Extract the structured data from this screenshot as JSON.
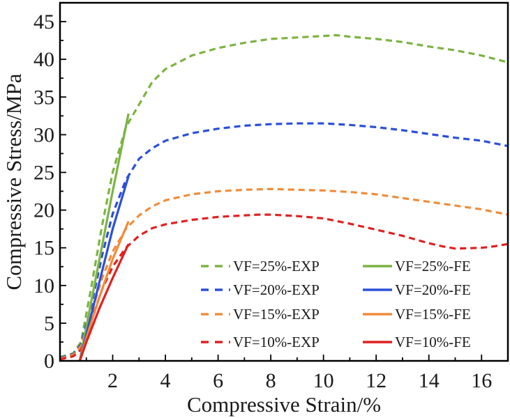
{
  "chart_data": {
    "type": "line",
    "title": "",
    "xlabel": "Compressive Strain/%",
    "ylabel": "Compressive Stress/MPa",
    "xlim": [
      0,
      17
    ],
    "ylim": [
      0,
      47.5
    ],
    "xticks": [
      2,
      4,
      6,
      8,
      10,
      12,
      14,
      16
    ],
    "yticks": [
      0,
      5,
      10,
      15,
      20,
      25,
      30,
      35,
      40,
      45
    ],
    "grid": false,
    "legend_position": "bottom-right",
    "series": [
      {
        "name": "VF=25%-EXP",
        "color": "#7cb342",
        "style": "dashed",
        "points": [
          [
            0,
            0.5
          ],
          [
            0.5,
            1.0
          ],
          [
            0.8,
            2.5
          ],
          [
            1.2,
            10
          ],
          [
            1.6,
            18
          ],
          [
            2.0,
            25
          ],
          [
            2.5,
            31
          ],
          [
            3.0,
            34
          ],
          [
            3.5,
            37
          ],
          [
            4.0,
            38.7
          ],
          [
            5.0,
            40.5
          ],
          [
            6.0,
            41.5
          ],
          [
            7.0,
            42.2
          ],
          [
            8.0,
            42.7
          ],
          [
            9.0,
            42.9
          ],
          [
            10.0,
            43.1
          ],
          [
            10.5,
            43.2
          ],
          [
            11.0,
            43.0
          ],
          [
            12.0,
            42.7
          ],
          [
            13.0,
            42.3
          ],
          [
            14.0,
            41.7
          ],
          [
            15.0,
            41.2
          ],
          [
            16.0,
            40.5
          ],
          [
            17.0,
            39.6
          ]
        ]
      },
      {
        "name": "VF=20%-EXP",
        "color": "#2b4fd9",
        "style": "dashed",
        "points": [
          [
            0,
            0.4
          ],
          [
            0.5,
            0.9
          ],
          [
            0.8,
            2.2
          ],
          [
            1.2,
            7.5
          ],
          [
            1.6,
            14
          ],
          [
            2.0,
            19.5
          ],
          [
            2.5,
            24.0
          ],
          [
            3.0,
            26.8
          ],
          [
            3.5,
            28.2
          ],
          [
            4.0,
            29.2
          ],
          [
            5.0,
            30.2
          ],
          [
            6.0,
            30.8
          ],
          [
            7.0,
            31.2
          ],
          [
            8.0,
            31.4
          ],
          [
            9.0,
            31.5
          ],
          [
            10.0,
            31.5
          ],
          [
            11.0,
            31.3
          ],
          [
            12.0,
            31.0
          ],
          [
            13.0,
            30.6
          ],
          [
            14.0,
            30.1
          ],
          [
            15.0,
            29.6
          ],
          [
            16.0,
            29.2
          ],
          [
            17.0,
            28.5
          ]
        ]
      },
      {
        "name": "VF=15%-EXP",
        "color": "#f08c3a",
        "style": "dashed",
        "points": [
          [
            0,
            0.3
          ],
          [
            0.5,
            0.8
          ],
          [
            0.8,
            2.0
          ],
          [
            1.2,
            6.5
          ],
          [
            1.6,
            11
          ],
          [
            2.0,
            14.5
          ],
          [
            2.5,
            17.5
          ],
          [
            3.0,
            19.3
          ],
          [
            3.5,
            20.5
          ],
          [
            4.0,
            21.3
          ],
          [
            5.0,
            22.1
          ],
          [
            6.0,
            22.5
          ],
          [
            7.0,
            22.7
          ],
          [
            8.0,
            22.8
          ],
          [
            9.0,
            22.7
          ],
          [
            10.0,
            22.6
          ],
          [
            11.0,
            22.4
          ],
          [
            12.0,
            22.1
          ],
          [
            13.0,
            21.6
          ],
          [
            14.0,
            21.1
          ],
          [
            15.0,
            20.6
          ],
          [
            16.0,
            20.1
          ],
          [
            17.0,
            19.4
          ]
        ]
      },
      {
        "name": "VF=10%-EXP",
        "color": "#e02020",
        "style": "dashed",
        "points": [
          [
            0,
            0.2
          ],
          [
            0.5,
            0.6
          ],
          [
            0.8,
            1.5
          ],
          [
            1.2,
            5.5
          ],
          [
            1.6,
            9.5
          ],
          [
            2.0,
            12.5
          ],
          [
            2.5,
            15.0
          ],
          [
            3.0,
            16.6
          ],
          [
            3.5,
            17.6
          ],
          [
            4.0,
            18.1
          ],
          [
            5.0,
            18.7
          ],
          [
            6.0,
            19.1
          ],
          [
            7.0,
            19.3
          ],
          [
            7.5,
            19.4
          ],
          [
            8.0,
            19.4
          ],
          [
            9.0,
            19.2
          ],
          [
            10.0,
            18.9
          ],
          [
            11.0,
            18.2
          ],
          [
            12.0,
            17.4
          ],
          [
            13.0,
            16.6
          ],
          [
            14.0,
            15.6
          ],
          [
            14.5,
            15.2
          ],
          [
            15.0,
            14.9
          ],
          [
            16.0,
            15.0
          ],
          [
            16.5,
            15.2
          ],
          [
            17.0,
            15.5
          ]
        ]
      },
      {
        "name": "VF=25%-FE",
        "color": "#7cb342",
        "style": "solid",
        "points": [
          [
            0.75,
            0
          ],
          [
            1.0,
            4.5
          ],
          [
            1.5,
            13.5
          ],
          [
            2.0,
            22.5
          ],
          [
            2.6,
            32.8
          ]
        ]
      },
      {
        "name": "VF=20%-FE",
        "color": "#2b4fd9",
        "style": "solid",
        "points": [
          [
            0.75,
            0
          ],
          [
            1.0,
            3.5
          ],
          [
            1.5,
            10.5
          ],
          [
            2.0,
            17.5
          ],
          [
            2.6,
            24.5
          ]
        ]
      },
      {
        "name": "VF=15%-FE",
        "color": "#f08c3a",
        "style": "solid",
        "points": [
          [
            0.75,
            0
          ],
          [
            1.0,
            3.0
          ],
          [
            1.5,
            8.5
          ],
          [
            2.0,
            13.5
          ],
          [
            2.6,
            18.5
          ]
        ]
      },
      {
        "name": "VF=10%-FE",
        "color": "#e02020",
        "style": "solid",
        "points": [
          [
            0.75,
            0
          ],
          [
            1.0,
            2.5
          ],
          [
            1.5,
            7.0
          ],
          [
            2.0,
            11.0
          ],
          [
            2.6,
            15.5
          ]
        ]
      }
    ]
  }
}
